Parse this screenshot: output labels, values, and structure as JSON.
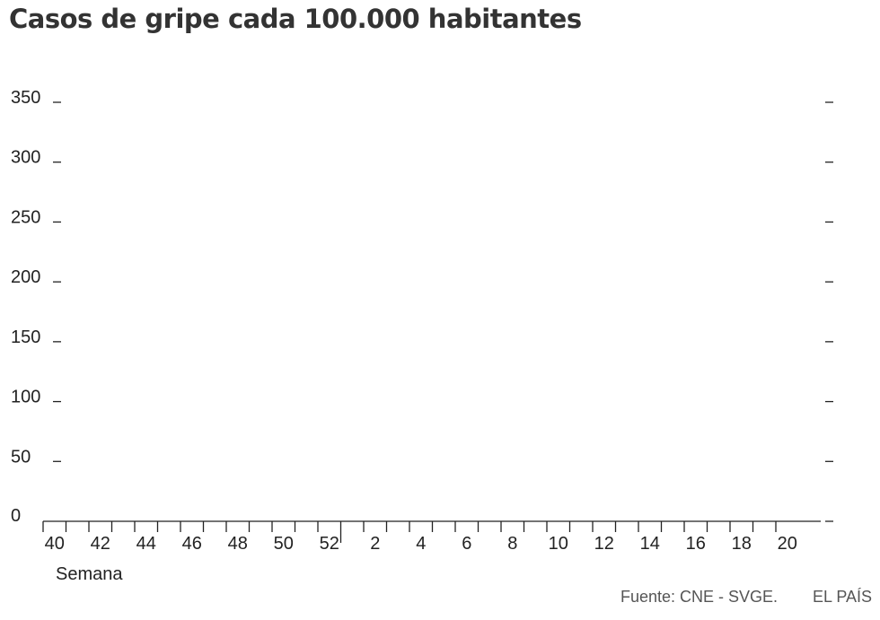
{
  "title": "Casos de gripe cada 100.000 habitantes",
  "source": "Fuente: CNE - SVGE.",
  "brand": "EL PAÍS",
  "chart_data": {
    "type": "line",
    "xlabel": "Semana",
    "ylabel": "",
    "ylim": [
      0,
      350
    ],
    "yticks": [
      0,
      50,
      100,
      150,
      200,
      250,
      300,
      350
    ],
    "x_weeks": [
      40,
      41,
      42,
      43,
      44,
      45,
      46,
      47,
      48,
      49,
      50,
      51,
      52,
      1,
      2,
      3,
      4,
      5,
      6,
      7,
      8,
      9,
      10,
      11,
      12,
      13,
      14,
      15,
      16,
      17,
      18,
      19,
      20
    ],
    "x_tick_labels": [
      {
        "week": 40,
        "label": "40"
      },
      {
        "week": 42,
        "label": "42"
      },
      {
        "week": 44,
        "label": "44"
      },
      {
        "week": 46,
        "label": "46"
      },
      {
        "week": 48,
        "label": "48"
      },
      {
        "week": 50,
        "label": "50"
      },
      {
        "week": 52,
        "label": "52"
      },
      {
        "week": 2,
        "label": "2"
      },
      {
        "week": 4,
        "label": "4"
      },
      {
        "week": 6,
        "label": "6"
      },
      {
        "week": 8,
        "label": "8"
      },
      {
        "week": 10,
        "label": "10"
      },
      {
        "week": 12,
        "label": "12"
      },
      {
        "week": 14,
        "label": "14"
      },
      {
        "week": 16,
        "label": "16"
      },
      {
        "week": 18,
        "label": "18"
      },
      {
        "week": 20,
        "label": "20"
      }
    ],
    "series": [],
    "grid": false
  }
}
